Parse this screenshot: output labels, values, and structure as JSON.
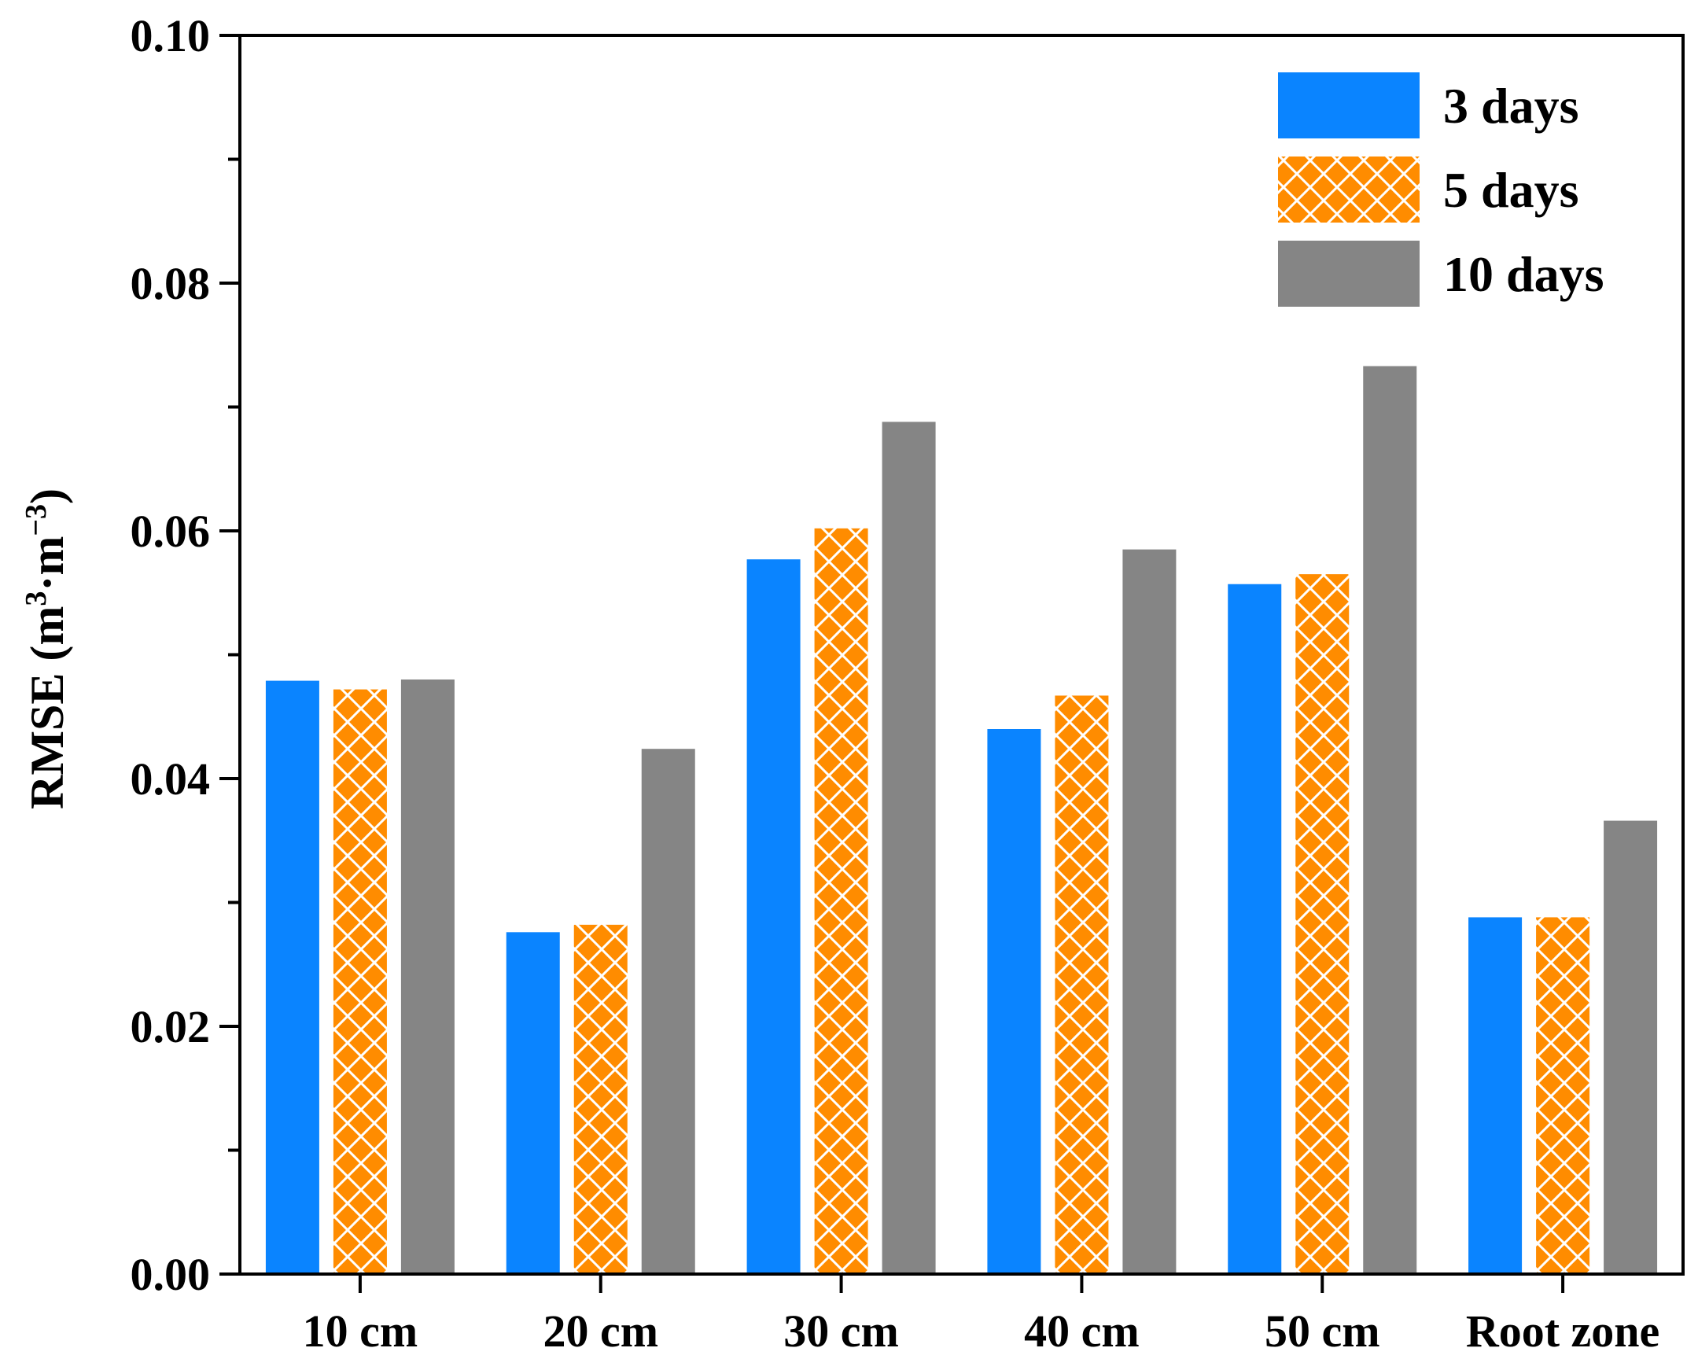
{
  "chart_data": {
    "type": "bar",
    "title": "",
    "xlabel": "",
    "ylabel": "RMSE",
    "ylabel_unit": {
      "open": "(m",
      "sup1": "3",
      "mid": "·m",
      "sup2": "−3",
      "close": ")"
    },
    "ylim": [
      0,
      0.1
    ],
    "yticks": [
      {
        "value": 0.0,
        "label": "0.00"
      },
      {
        "value": 0.02,
        "label": "0.02"
      },
      {
        "value": 0.04,
        "label": "0.04"
      },
      {
        "value": 0.06,
        "label": "0.06"
      },
      {
        "value": 0.08,
        "label": "0.08"
      },
      {
        "value": 0.1,
        "label": "0.10"
      }
    ],
    "minor_yticks": [
      0.01,
      0.03,
      0.05,
      0.07,
      0.09
    ],
    "categories": [
      "10 cm",
      "20 cm",
      "30 cm",
      "40 cm",
      "50 cm",
      "Root zone"
    ],
    "series": [
      {
        "name": "3 days",
        "color": "#0A84FF",
        "pattern": "solid",
        "values": [
          0.0479,
          0.0276,
          0.0577,
          0.044,
          0.0557,
          0.0288
        ]
      },
      {
        "name": "5 days",
        "color": "#FF8C00",
        "pattern": "crosshatch",
        "values": [
          0.0472,
          0.0282,
          0.0602,
          0.0467,
          0.0565,
          0.0288
        ]
      },
      {
        "name": "10 days",
        "color": "#858585",
        "pattern": "solid",
        "values": [
          0.048,
          0.0424,
          0.0688,
          0.0585,
          0.0733,
          0.0366
        ]
      }
    ],
    "grid": false,
    "legend_position": "top-right"
  }
}
